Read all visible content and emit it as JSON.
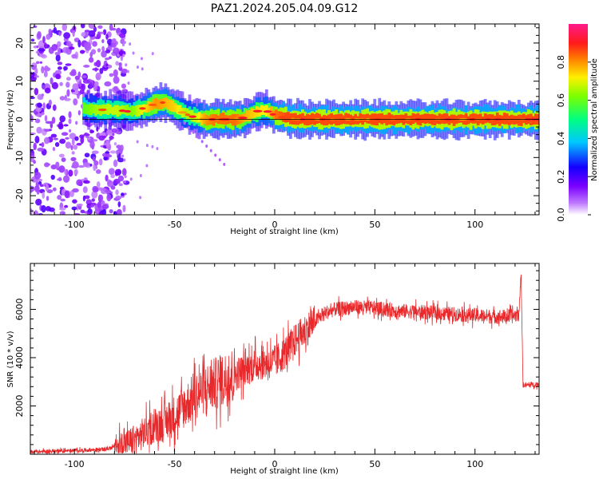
{
  "title": "PAZ1.2024.205.04.09.G12",
  "chart_data": [
    {
      "type": "heatmap",
      "xlabel": "Height of straight line (km)",
      "ylabel": "Frequency (Hz)",
      "xlim": [
        -122,
        132
      ],
      "ylim": [
        -25,
        25
      ],
      "xticks": [
        -100,
        -50,
        0,
        50,
        100
      ],
      "yticks": [
        -20,
        -10,
        0,
        10,
        20
      ],
      "colorbar": {
        "label": "Normalized spectral amplitude",
        "range": [
          0,
          1
        ],
        "ticks": [
          0.0,
          0.2,
          0.4,
          0.6,
          0.8
        ],
        "colormap": "rainbow (white-violet-blue-cyan-green-yellow-red-pink)"
      },
      "ridge": {
        "x": [
          -96,
          -90,
          -80,
          -72,
          -65,
          -60,
          -55,
          -50,
          -45,
          -40,
          -35,
          -30,
          -25,
          -20,
          -15,
          -10,
          -5,
          0,
          5,
          10,
          20,
          30,
          50,
          70,
          90,
          110,
          132
        ],
        "y": [
          3.0,
          2.5,
          2.5,
          2.0,
          3.0,
          4.0,
          4.5,
          3.0,
          1.5,
          0.5,
          0.0,
          0.0,
          0.0,
          0.0,
          0.5,
          2.0,
          2.5,
          1.0,
          0.5,
          0.0,
          0.0,
          0.0,
          0.0,
          0.0,
          0.0,
          0.0,
          0.0
        ],
        "amplitude": [
          0.45,
          0.55,
          0.6,
          0.5,
          0.7,
          0.8,
          0.75,
          0.7,
          0.55,
          0.6,
          0.8,
          0.85,
          0.85,
          0.85,
          0.75,
          0.7,
          0.65,
          0.85,
          0.9,
          0.9,
          0.9,
          0.9,
          0.9,
          0.9,
          0.9,
          0.9,
          0.9
        ]
      },
      "noise_region_x": [
        -122,
        -80
      ]
    },
    {
      "type": "line",
      "xlabel": "Height of straight line (km)",
      "ylabel": "SNR (10 * v/v)",
      "xlim": [
        -122,
        132
      ],
      "ylim": [
        0,
        7900
      ],
      "xticks": [
        -100,
        -50,
        0,
        50,
        100
      ],
      "yticks": [
        2000,
        4000,
        6000
      ],
      "series": [
        {
          "color": "#e8282a",
          "x": [
            -122,
            -100,
            -85,
            -78,
            -70,
            -65,
            -60,
            -55,
            -50,
            -45,
            -40,
            -35,
            -30,
            -25,
            -20,
            -15,
            -10,
            -5,
            0,
            5,
            10,
            15,
            20,
            25,
            30,
            40,
            50,
            60,
            70,
            80,
            90,
            100,
            110,
            118,
            122,
            123,
            124,
            125,
            132
          ],
          "y": [
            100,
            150,
            200,
            350,
            600,
            900,
            1200,
            1300,
            1600,
            2000,
            2400,
            2700,
            2900,
            3100,
            3300,
            3500,
            3700,
            3800,
            3800,
            4200,
            4700,
            5100,
            5500,
            5850,
            6000,
            6100,
            6050,
            5950,
            5900,
            5850,
            5800,
            5750,
            5700,
            5700,
            5800,
            7600,
            2900,
            2850,
            2900
          ]
        }
      ]
    }
  ]
}
